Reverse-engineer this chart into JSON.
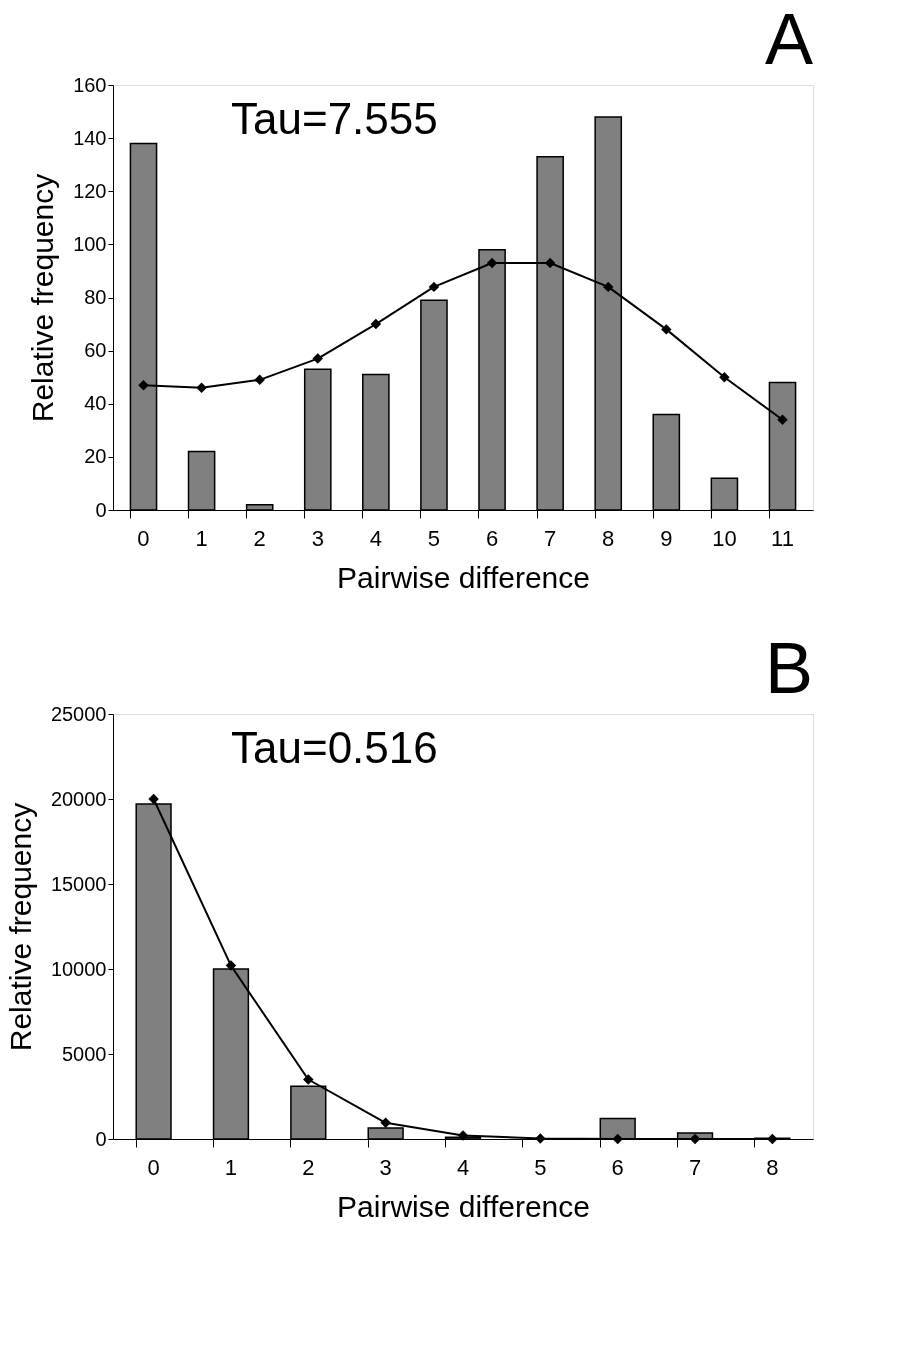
{
  "chart_data": [
    {
      "type": "bar",
      "title": "A",
      "xlabel": "Pairwise difference",
      "ylabel": "Relative frequency",
      "categories": [
        "0",
        "1",
        "2",
        "3",
        "4",
        "5",
        "6",
        "7",
        "8",
        "9",
        "10",
        "11"
      ],
      "series": [
        {
          "color": "#808080",
          "values": [
            138,
            22,
            2,
            53,
            51,
            79,
            98,
            133,
            148,
            36,
            12,
            48
          ]
        },
        {
          "type": "line",
          "color": "#000000",
          "marker": "diamond",
          "values": [
            47,
            46,
            49,
            57,
            70,
            84,
            93,
            93,
            84,
            68,
            50,
            34
          ]
        }
      ],
      "ylim": [
        0,
        160
      ],
      "yticks": [
        0,
        20,
        40,
        60,
        80,
        100,
        120,
        140,
        160
      ],
      "grid": false,
      "annotations": [
        "Tau=7.555"
      ]
    },
    {
      "type": "bar",
      "title": "B",
      "xlabel": "Pairwise difference",
      "ylabel": "Relative frequency",
      "categories": [
        "0",
        "1",
        "2",
        "3",
        "4",
        "5",
        "6",
        "7",
        "8"
      ],
      "series": [
        {
          "color": "#808080",
          "values": [
            19700,
            10000,
            3100,
            650,
            100,
            null,
            1200,
            350,
            50
          ]
        },
        {
          "type": "line",
          "color": "#000000",
          "marker": "diamond",
          "values": [
            20000,
            10200,
            3500,
            950,
            200,
            30,
            0,
            0,
            0
          ]
        }
      ],
      "ylim": [
        0,
        25000
      ],
      "yticks": [
        0,
        5000,
        10000,
        15000,
        20000,
        25000
      ],
      "grid": false,
      "annotations": [
        "Tau=0.516"
      ]
    }
  ]
}
